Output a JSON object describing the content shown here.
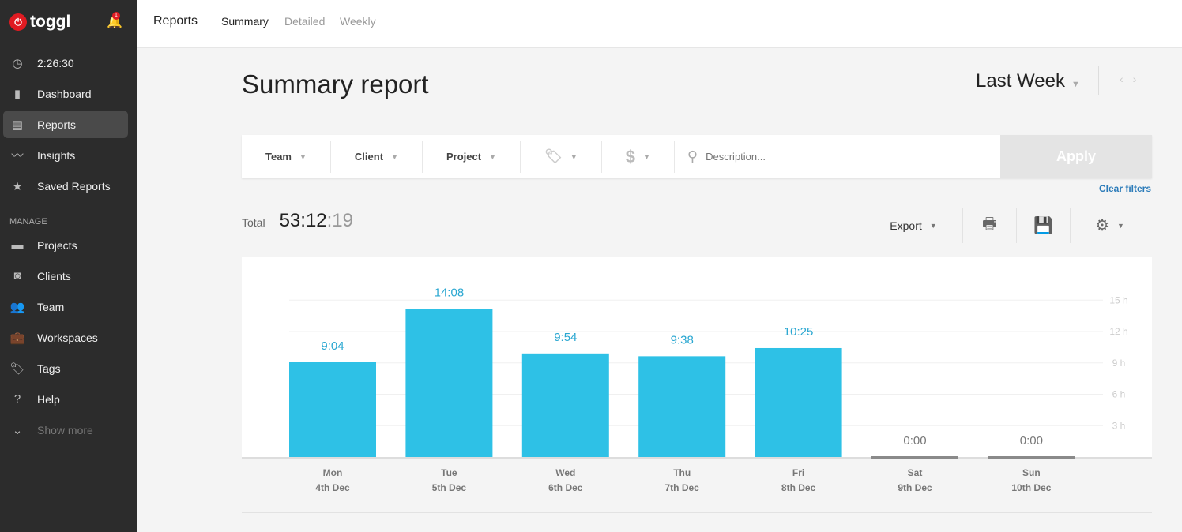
{
  "sidebar": {
    "brand": "toggl",
    "notifications": "1",
    "timer": "2:26:30",
    "items": [
      {
        "label": "Dashboard",
        "icon": "bar-chart-icon"
      },
      {
        "label": "Reports",
        "icon": "report-icon",
        "active": true
      },
      {
        "label": "Insights",
        "icon": "insights-icon"
      },
      {
        "label": "Saved Reports",
        "icon": "star-icon"
      }
    ],
    "manage_label": "MANAGE",
    "manage_items": [
      {
        "label": "Projects",
        "icon": "folder-icon"
      },
      {
        "label": "Clients",
        "icon": "client-icon"
      },
      {
        "label": "Team",
        "icon": "team-icon"
      },
      {
        "label": "Workspaces",
        "icon": "briefcase-icon"
      },
      {
        "label": "Tags",
        "icon": "tag-icon"
      },
      {
        "label": "Help",
        "icon": "help-icon"
      },
      {
        "label": "Show more",
        "icon": "chevron-down-icon"
      }
    ]
  },
  "topbar": {
    "title": "Reports",
    "tabs": [
      "Summary",
      "Detailed",
      "Weekly"
    ],
    "active_tab": "Summary"
  },
  "page": {
    "title": "Summary report",
    "period": "Last Week"
  },
  "filters": {
    "team": "Team",
    "client": "Client",
    "project": "Project",
    "description_placeholder": "Description...",
    "apply": "Apply",
    "clear": "Clear filters"
  },
  "total": {
    "label": "Total",
    "hm": "53:12",
    "sec": ":19"
  },
  "toolbar": {
    "export": "Export"
  },
  "colors": {
    "bar": "#2ec1e6",
    "zero_bar": "#8a8a8a",
    "sidebar": "#2c2c2c",
    "brand": "#e01b22"
  },
  "chart_data": {
    "type": "bar",
    "categories": [
      [
        "Mon",
        "4th Dec"
      ],
      [
        "Tue",
        "5th Dec"
      ],
      [
        "Wed",
        "6th Dec"
      ],
      [
        "Thu",
        "7th Dec"
      ],
      [
        "Fri",
        "8th Dec"
      ],
      [
        "Sat",
        "9th Dec"
      ],
      [
        "Sun",
        "10th Dec"
      ]
    ],
    "labels": [
      "9:04",
      "14:08",
      "9:54",
      "9:38",
      "10:25",
      "0:00",
      "0:00"
    ],
    "values": [
      9.067,
      14.133,
      9.9,
      9.633,
      10.417,
      0,
      0
    ],
    "yticks": [
      "3 h",
      "6 h",
      "9 h",
      "12 h",
      "15 h"
    ],
    "ytick_values": [
      3,
      6,
      9,
      12,
      15
    ],
    "ylim": [
      0,
      15
    ],
    "grid": true
  }
}
